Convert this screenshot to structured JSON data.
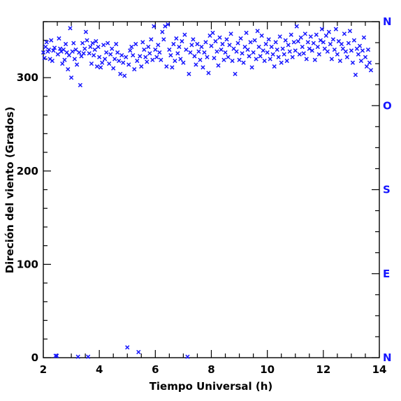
{
  "chart_data": {
    "type": "scatter",
    "xlabel": "Tiempo Universal (h)",
    "ylabel": "Direción del viento (Grados)",
    "xlim": [
      2,
      14
    ],
    "ylim": [
      0,
      360
    ],
    "x_ticks": [
      2,
      4,
      6,
      8,
      10,
      12,
      14
    ],
    "y_ticks": [
      0,
      100,
      200,
      300
    ],
    "right_axis_labels": [
      {
        "value": 0,
        "text": "N"
      },
      {
        "value": 90,
        "text": "E"
      },
      {
        "value": 180,
        "text": "S"
      },
      {
        "value": 270,
        "text": "O"
      },
      {
        "value": 360,
        "text": "N"
      }
    ],
    "marker": "x",
    "colors": {
      "points": "#1515ff",
      "right_axis": "#1515ff",
      "axes": "#000000"
    },
    "series": [
      {
        "points": [
          [
            2.0,
            327
          ],
          [
            2.04,
            321
          ],
          [
            2.08,
            333
          ],
          [
            2.12,
            338
          ],
          [
            2.16,
            328
          ],
          [
            2.2,
            330
          ],
          [
            2.24,
            320
          ],
          [
            2.28,
            340
          ],
          [
            2.32,
            318
          ],
          [
            2.36,
            329
          ],
          [
            2.4,
            332
          ],
          [
            2.44,
            2
          ],
          [
            2.48,
            2
          ],
          [
            2.52,
            325
          ],
          [
            2.56,
            342
          ],
          [
            2.6,
            331
          ],
          [
            2.64,
            328
          ],
          [
            2.68,
            315
          ],
          [
            2.72,
            330
          ],
          [
            2.76,
            319
          ],
          [
            2.8,
            336
          ],
          [
            2.84,
            327
          ],
          [
            2.88,
            309
          ],
          [
            2.92,
            324
          ],
          [
            2.96,
            353
          ],
          [
            3.0,
            300
          ],
          [
            3.04,
            328
          ],
          [
            3.08,
            337
          ],
          [
            3.12,
            320
          ],
          [
            3.16,
            330
          ],
          [
            3.2,
            314
          ],
          [
            3.24,
            1
          ],
          [
            3.28,
            327
          ],
          [
            3.32,
            292
          ],
          [
            3.36,
            323
          ],
          [
            3.4,
            337
          ],
          [
            3.44,
            326
          ],
          [
            3.48,
            331
          ],
          [
            3.52,
            349
          ],
          [
            3.56,
            340
          ],
          [
            3.6,
            1
          ],
          [
            3.64,
            326
          ],
          [
            3.68,
            333
          ],
          [
            3.72,
            315
          ],
          [
            3.76,
            337
          ],
          [
            3.8,
            324
          ],
          [
            3.84,
            330
          ],
          [
            3.88,
            339
          ],
          [
            3.92,
            312
          ],
          [
            3.96,
            333
          ],
          [
            4.0,
            322
          ],
          [
            4.05,
            311
          ],
          [
            4.1,
            316
          ],
          [
            4.15,
            335
          ],
          [
            4.2,
            320
          ],
          [
            4.25,
            327
          ],
          [
            4.3,
            337
          ],
          [
            4.35,
            315
          ],
          [
            4.4,
            325
          ],
          [
            4.45,
            331
          ],
          [
            4.5,
            310
          ],
          [
            4.55,
            320
          ],
          [
            4.6,
            336
          ],
          [
            4.65,
            327
          ],
          [
            4.7,
            318
          ],
          [
            4.75,
            304
          ],
          [
            4.8,
            324
          ],
          [
            4.85,
            316
          ],
          [
            4.9,
            302
          ],
          [
            4.95,
            322
          ],
          [
            5.0,
            11
          ],
          [
            5.05,
            314
          ],
          [
            5.1,
            329
          ],
          [
            5.15,
            333
          ],
          [
            5.2,
            324
          ],
          [
            5.25,
            309
          ],
          [
            5.3,
            336
          ],
          [
            5.35,
            318
          ],
          [
            5.4,
            6
          ],
          [
            5.45,
            323
          ],
          [
            5.5,
            312
          ],
          [
            5.55,
            338
          ],
          [
            5.6,
            330
          ],
          [
            5.65,
            322
          ],
          [
            5.7,
            317
          ],
          [
            5.75,
            333
          ],
          [
            5.8,
            326
          ],
          [
            5.85,
            341
          ],
          [
            5.9,
            319
          ],
          [
            5.95,
            355
          ],
          [
            6.0,
            330
          ],
          [
            6.05,
            322
          ],
          [
            6.1,
            335
          ],
          [
            6.15,
            327
          ],
          [
            6.2,
            319
          ],
          [
            6.25,
            349
          ],
          [
            6.3,
            341
          ],
          [
            6.35,
            355
          ],
          [
            6.4,
            312
          ],
          [
            6.45,
            357
          ],
          [
            6.5,
            330
          ],
          [
            6.55,
            324
          ],
          [
            6.6,
            311
          ],
          [
            6.65,
            336
          ],
          [
            6.7,
            318
          ],
          [
            6.75,
            342
          ],
          [
            6.8,
            326
          ],
          [
            6.85,
            333
          ],
          [
            6.9,
            320
          ],
          [
            6.95,
            339
          ],
          [
            7.0,
            316
          ],
          [
            7.05,
            346
          ],
          [
            7.1,
            330
          ],
          [
            7.15,
            1
          ],
          [
            7.2,
            304
          ],
          [
            7.25,
            327
          ],
          [
            7.3,
            335
          ],
          [
            7.35,
            341
          ],
          [
            7.4,
            323
          ],
          [
            7.45,
            314
          ],
          [
            7.5,
            336
          ],
          [
            7.55,
            328
          ],
          [
            7.6,
            319
          ],
          [
            7.65,
            333
          ],
          [
            7.7,
            311
          ],
          [
            7.75,
            327
          ],
          [
            7.8,
            338
          ],
          [
            7.85,
            322
          ],
          [
            7.9,
            305
          ],
          [
            7.95,
            345
          ],
          [
            8.0,
            334
          ],
          [
            8.05,
            348
          ],
          [
            8.1,
            321
          ],
          [
            8.15,
            339
          ],
          [
            8.2,
            328
          ],
          [
            8.25,
            313
          ],
          [
            8.3,
            343
          ],
          [
            8.35,
            330
          ],
          [
            8.4,
            336
          ],
          [
            8.45,
            319
          ],
          [
            8.5,
            327
          ],
          [
            8.55,
            341
          ],
          [
            8.6,
            322
          ],
          [
            8.65,
            335
          ],
          [
            8.7,
            347
          ],
          [
            8.75,
            318
          ],
          [
            8.8,
            331
          ],
          [
            8.85,
            304
          ],
          [
            8.9,
            328
          ],
          [
            8.95,
            337
          ],
          [
            9.0,
            319
          ],
          [
            9.05,
            342
          ],
          [
            9.1,
            326
          ],
          [
            9.15,
            316
          ],
          [
            9.2,
            333
          ],
          [
            9.25,
            348
          ],
          [
            9.3,
            330
          ],
          [
            9.35,
            323
          ],
          [
            9.4,
            338
          ],
          [
            9.45,
            311
          ],
          [
            9.5,
            327
          ],
          [
            9.55,
            340
          ],
          [
            9.6,
            320
          ],
          [
            9.65,
            350
          ],
          [
            9.7,
            333
          ],
          [
            9.75,
            323
          ],
          [
            9.8,
            345
          ],
          [
            9.85,
            329
          ],
          [
            9.9,
            318
          ],
          [
            9.95,
            336
          ],
          [
            10.0,
            327
          ],
          [
            10.05,
            341
          ],
          [
            10.1,
            320
          ],
          [
            10.15,
            333
          ],
          [
            10.2,
            325
          ],
          [
            10.25,
            312
          ],
          [
            10.3,
            338
          ],
          [
            10.35,
            330
          ],
          [
            10.4,
            322
          ],
          [
            10.45,
            344
          ],
          [
            10.5,
            316
          ],
          [
            10.55,
            331
          ],
          [
            10.6,
            325
          ],
          [
            10.65,
            340
          ],
          [
            10.7,
            318
          ],
          [
            10.75,
            335
          ],
          [
            10.8,
            328
          ],
          [
            10.85,
            346
          ],
          [
            10.9,
            322
          ],
          [
            10.95,
            338
          ],
          [
            11.0,
            329
          ],
          [
            11.05,
            355
          ],
          [
            11.1,
            339
          ],
          [
            11.15,
            325
          ],
          [
            11.2,
            343
          ],
          [
            11.25,
            333
          ],
          [
            11.3,
            326
          ],
          [
            11.35,
            347
          ],
          [
            11.4,
            320
          ],
          [
            11.45,
            338
          ],
          [
            11.5,
            331
          ],
          [
            11.55,
            344
          ],
          [
            11.6,
            329
          ],
          [
            11.65,
            337
          ],
          [
            11.7,
            319
          ],
          [
            11.75,
            346
          ],
          [
            11.8,
            333
          ],
          [
            11.85,
            325
          ],
          [
            11.9,
            340
          ],
          [
            11.95,
            352
          ],
          [
            12.0,
            338
          ],
          [
            12.05,
            331
          ],
          [
            12.1,
            345
          ],
          [
            12.15,
            328
          ],
          [
            12.2,
            349
          ],
          [
            12.25,
            336
          ],
          [
            12.3,
            320
          ],
          [
            12.35,
            341
          ],
          [
            12.4,
            330
          ],
          [
            12.45,
            352
          ],
          [
            12.5,
            325
          ],
          [
            12.55,
            339
          ],
          [
            12.6,
            318
          ],
          [
            12.65,
            336
          ],
          [
            12.7,
            331
          ],
          [
            12.75,
            347
          ],
          [
            12.8,
            328
          ],
          [
            12.85,
            322
          ],
          [
            12.9,
            337
          ],
          [
            12.95,
            350
          ],
          [
            13.0,
            329
          ],
          [
            13.05,
            316
          ],
          [
            13.1,
            340
          ],
          [
            13.15,
            303
          ],
          [
            13.2,
            331
          ],
          [
            13.25,
            325
          ],
          [
            13.3,
            334
          ],
          [
            13.35,
            318
          ],
          [
            13.4,
            329
          ],
          [
            13.45,
            343
          ],
          [
            13.5,
            322
          ],
          [
            13.55,
            312
          ],
          [
            13.6,
            330
          ],
          [
            13.65,
            316
          ],
          [
            13.7,
            308
          ]
        ]
      }
    ]
  }
}
